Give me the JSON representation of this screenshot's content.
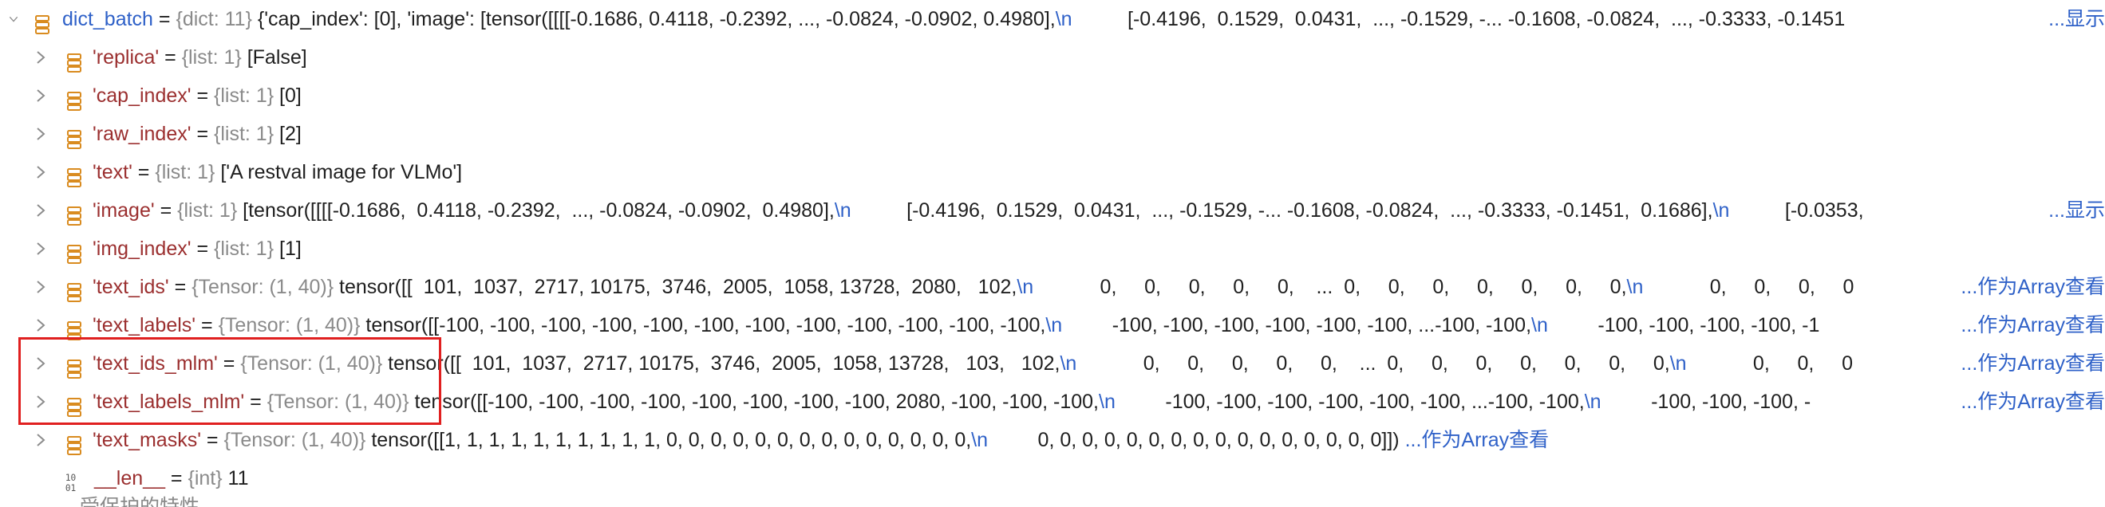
{
  "root": {
    "name": "dict_batch",
    "eq": " = ",
    "type": "{dict: 11}",
    "value": "{'cap_index': [0], 'image': [tensor([[[[-0.1686,  0.4118, -0.2392,  ..., -0.0824, -0.0902,  0.4980],",
    "esc": "\\n",
    "value2": "          [-0.4196,  0.1529,  0.0431,  ..., -0.1529, -... -0.1608, -0.0824,  ..., -0.3333, -0.1451",
    "link": "...显示"
  },
  "rows": [
    {
      "key": "'replica'",
      "type": "{list: 1}",
      "value": "[False]"
    },
    {
      "key": "'cap_index'",
      "type": "{list: 1}",
      "value": "[0]"
    },
    {
      "key": "'raw_index'",
      "type": "{list: 1}",
      "value": "[2]"
    },
    {
      "key": "'text'",
      "type": "{list: 1}",
      "value": "['A restval image for VLMo']"
    },
    {
      "key": "'image'",
      "type": "{list: 1}",
      "value": "[tensor([[[[-0.1686,  0.4118, -0.2392,  ..., -0.0824, -0.0902,  0.4980],",
      "esc": "\\n",
      "value2": "          [-0.4196,  0.1529,  0.0431,  ..., -0.1529, -... -0.1608, -0.0824,  ..., -0.3333, -0.1451,  0.1686],",
      "esc2": "\\n",
      "value3": "          [-0.0353,",
      "link": "...显示"
    },
    {
      "key": "'img_index'",
      "type": "{list: 1}",
      "value": "[1]"
    },
    {
      "key": "'text_ids'",
      "type": "{Tensor: (1, 40)}",
      "value": "tensor([[  101,  1037,  2717, 10175,  3746,  2005,  1058, 13728,  2080,   102,",
      "esc": "\\n",
      "value2": "            0,     0,     0,     0,     0,    ...  0,     0,     0,     0,     0,     0,     0,",
      "esc2": "\\n",
      "value3": "            0,     0,     0,     0",
      "link": "...作为Array查看"
    },
    {
      "key": "'text_labels'",
      "type": "{Tensor: (1, 40)}",
      "value": "tensor([[-100, -100, -100, -100, -100, -100, -100, -100, -100, -100, -100, -100,",
      "esc": "\\n",
      "value2": "         -100, -100, -100, -100, -100, -100, ...-100, -100,",
      "esc2": "\\n",
      "value3": "         -100, -100, -100, -100, -1",
      "link": "...作为Array查看"
    },
    {
      "key": "'text_ids_mlm'",
      "type": "{Tensor: (1, 40)}",
      "value": "tensor([[  101,  1037,  2717, 10175,  3746,  2005,  1058, 13728,   103,   102,",
      "esc": "\\n",
      "value2": "            0,     0,     0,     0,     0,    ...  0,     0,     0,     0,     0,     0,     0,",
      "esc2": "\\n",
      "value3": "            0,     0,     0",
      "link": "...作为Array查看"
    },
    {
      "key": "'text_labels_mlm'",
      "type": "{Tensor: (1, 40)}",
      "value": "tensor([[-100, -100, -100, -100, -100, -100, -100, -100, 2080, -100, -100, -100,",
      "esc": "\\n",
      "value2": "         -100, -100, -100, -100, -100, -100, ...-100, -100,",
      "esc2": "\\n",
      "value3": "         -100, -100, -100, -",
      "link": "...作为Array查看"
    },
    {
      "key": "'text_masks'",
      "type": "{Tensor: (1, 40)}",
      "value": "tensor([[1, 1, 1, 1, 1, 1, 1, 1, 1, 1, 0, 0, 0, 0, 0, 0, 0, 0, 0, 0, 0, 0, 0, 0,",
      "esc": "\\n",
      "value2": "         0, 0, 0, 0, 0, 0, 0, 0, 0, 0, 0, 0, 0, 0, 0, 0]])",
      "link": "...作为Array查看"
    }
  ],
  "len_row": {
    "key": "__len__",
    "type": "{int}",
    "value": "11",
    "icon_text_top": "10",
    "icon_text_bottom": "01"
  },
  "cut_row": {
    "text": "受保护的特性"
  },
  "colors": {
    "key": "#9b2f2f",
    "root_key": "#2f61c8",
    "type": "#8a8a8a",
    "link": "#2f61c8",
    "highlight": "#e02020",
    "icon_orange": "#d98b1f"
  }
}
